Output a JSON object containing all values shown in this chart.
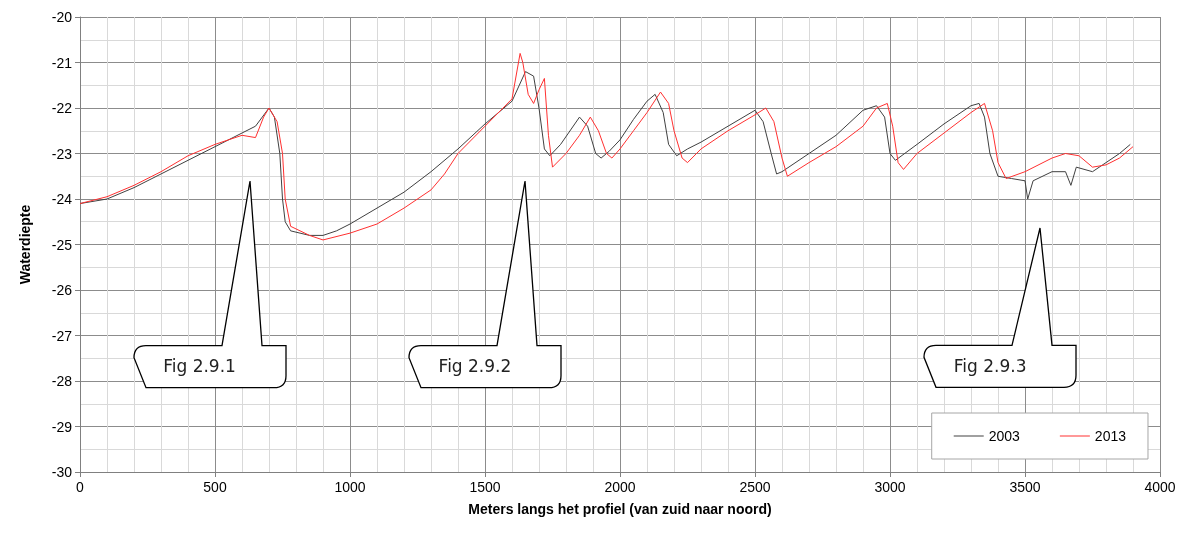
{
  "chart_data": {
    "type": "line",
    "xlabel": "Meters langs het profiel (van zuid naar noord)",
    "ylabel": "Waterdiepte",
    "xlim": [
      0,
      4000
    ],
    "xticks": [
      0,
      500,
      1000,
      1500,
      2000,
      2500,
      3000,
      3500,
      4000
    ],
    "ylim": [
      -30,
      -20
    ],
    "yticks": [
      -30,
      -29,
      -28,
      -27,
      -26,
      -25,
      -24,
      -23,
      -22,
      -21,
      -20
    ],
    "grid": true,
    "legend": "bottom right",
    "marker": "none",
    "line_style": "solid",
    "annotations": [
      "Fig 2.9.1",
      "Fig 2.9.2",
      "Fig 2.9.3"
    ],
    "series": [
      {
        "name": "2003",
        "color": "#404040",
        "x": [
          0,
          100,
          200,
          300,
          400,
          500,
          600,
          650,
          700,
          720,
          740,
          750,
          760,
          780,
          850,
          900,
          950,
          1000,
          1100,
          1200,
          1300,
          1400,
          1500,
          1600,
          1650,
          1680,
          1700,
          1720,
          1740,
          1780,
          1850,
          1880,
          1910,
          1930,
          1960,
          2000,
          2050,
          2100,
          2130,
          2160,
          2180,
          2210,
          2250,
          2300,
          2400,
          2500,
          2530,
          2560,
          2580,
          2600,
          2700,
          2800,
          2900,
          2950,
          2980,
          3000,
          3020,
          3100,
          3200,
          3300,
          3330,
          3350,
          3370,
          3400,
          3450,
          3500,
          3510,
          3530,
          3600,
          3650,
          3670,
          3690,
          3750,
          3800,
          3850,
          3890
        ],
        "values": [
          -24.1,
          -24.0,
          -23.75,
          -23.45,
          -23.15,
          -22.85,
          -22.55,
          -22.4,
          -22.0,
          -22.2,
          -23.0,
          -24.0,
          -24.5,
          -24.7,
          -24.8,
          -24.8,
          -24.7,
          -24.55,
          -24.2,
          -23.85,
          -23.4,
          -22.9,
          -22.35,
          -21.85,
          -21.2,
          -21.3,
          -22.0,
          -22.9,
          -23.05,
          -22.8,
          -22.2,
          -22.4,
          -23.0,
          -23.1,
          -22.95,
          -22.7,
          -22.25,
          -21.85,
          -21.7,
          -22.1,
          -22.8,
          -23.05,
          -22.9,
          -22.75,
          -22.4,
          -22.05,
          -22.3,
          -23.0,
          -23.45,
          -23.4,
          -23.0,
          -22.6,
          -22.05,
          -21.95,
          -22.2,
          -23.0,
          -23.15,
          -22.8,
          -22.35,
          -21.95,
          -21.9,
          -22.2,
          -23.0,
          -23.5,
          -23.55,
          -23.6,
          -24.0,
          -23.6,
          -23.4,
          -23.4,
          -23.7,
          -23.3,
          -23.4,
          -23.2,
          -23.0,
          -22.8
        ]
      },
      {
        "name": "2013",
        "color": "#ff3030",
        "x": [
          0,
          100,
          200,
          300,
          400,
          500,
          600,
          650,
          680,
          700,
          730,
          750,
          760,
          780,
          850,
          900,
          1000,
          1100,
          1200,
          1300,
          1350,
          1400,
          1500,
          1600,
          1630,
          1640,
          1660,
          1680,
          1700,
          1720,
          1735,
          1750,
          1800,
          1850,
          1890,
          1920,
          1950,
          1970,
          2000,
          2050,
          2100,
          2150,
          2180,
          2200,
          2230,
          2250,
          2300,
          2400,
          2500,
          2540,
          2570,
          2600,
          2620,
          2700,
          2800,
          2900,
          2950,
          2990,
          3010,
          3030,
          3050,
          3100,
          3200,
          3300,
          3350,
          3380,
          3400,
          3430,
          3500,
          3600,
          3650,
          3700,
          3750,
          3800,
          3850,
          3900
        ],
        "values": [
          -24.1,
          -23.95,
          -23.7,
          -23.4,
          -23.05,
          -22.8,
          -22.6,
          -22.65,
          -22.2,
          -22.0,
          -22.3,
          -23.0,
          -24.0,
          -24.6,
          -24.8,
          -24.9,
          -24.75,
          -24.55,
          -24.2,
          -23.8,
          -23.45,
          -23.0,
          -22.4,
          -21.8,
          -20.8,
          -21.0,
          -21.7,
          -21.9,
          -21.6,
          -21.35,
          -22.6,
          -23.3,
          -23.0,
          -22.6,
          -22.2,
          -22.5,
          -23.0,
          -23.1,
          -22.9,
          -22.5,
          -22.1,
          -21.65,
          -21.9,
          -22.5,
          -23.1,
          -23.2,
          -22.9,
          -22.5,
          -22.15,
          -22.0,
          -22.3,
          -23.1,
          -23.5,
          -23.2,
          -22.85,
          -22.4,
          -22.0,
          -21.9,
          -22.4,
          -23.2,
          -23.35,
          -23.0,
          -22.55,
          -22.1,
          -21.9,
          -22.5,
          -23.2,
          -23.55,
          -23.4,
          -23.1,
          -23.0,
          -23.05,
          -23.3,
          -23.25,
          -23.1,
          -22.85
        ]
      }
    ]
  }
}
